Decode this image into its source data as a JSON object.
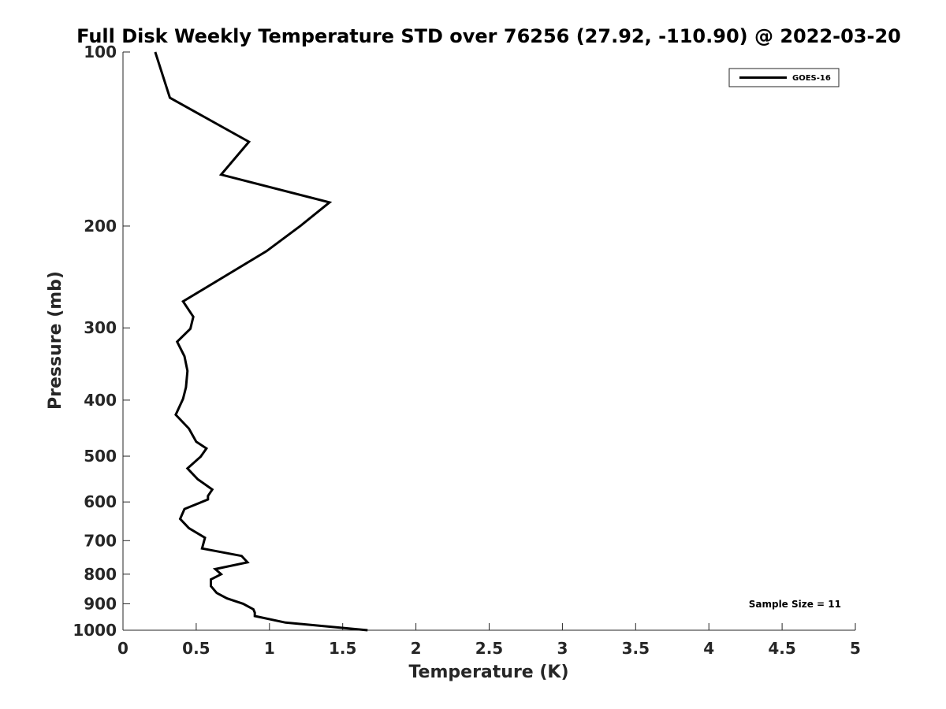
{
  "chart_data": {
    "type": "line",
    "title": "Full Disk Weekly Temperature STD over 76256 (27.92, -110.90) @ 2022-03-20",
    "xlabel": "Temperature (K)",
    "ylabel": "Pressure (mb)",
    "xlim": [
      0,
      5
    ],
    "ylim": [
      1000,
      100
    ],
    "y_scale": "log",
    "y_reversed": true,
    "x_ticks": [
      "0",
      "0.5",
      "1",
      "1.5",
      "2",
      "2.5",
      "3",
      "3.5",
      "4",
      "4.5",
      "5"
    ],
    "y_ticks": [
      "100",
      "200",
      "300",
      "400",
      "500",
      "600",
      "700",
      "800",
      "900",
      "1000"
    ],
    "grid": false,
    "legend": {
      "position": "top-right",
      "entries": [
        "GOES-16"
      ]
    },
    "annotation": "Sample Size = 11",
    "series": [
      {
        "name": "GOES-16",
        "color": "#000000",
        "points": [
          [
            0.22,
            100
          ],
          [
            0.32,
            120
          ],
          [
            0.86,
            143
          ],
          [
            0.67,
            163
          ],
          [
            1.41,
            182
          ],
          [
            1.21,
            200
          ],
          [
            0.98,
            221
          ],
          [
            0.41,
            270
          ],
          [
            0.48,
            287
          ],
          [
            0.46,
            301
          ],
          [
            0.37,
            317
          ],
          [
            0.42,
            336
          ],
          [
            0.44,
            356
          ],
          [
            0.43,
            380
          ],
          [
            0.41,
            398
          ],
          [
            0.36,
            424
          ],
          [
            0.45,
            448
          ],
          [
            0.5,
            472
          ],
          [
            0.57,
            485
          ],
          [
            0.53,
            501
          ],
          [
            0.44,
            525
          ],
          [
            0.51,
            548
          ],
          [
            0.61,
            571
          ],
          [
            0.58,
            586
          ],
          [
            0.58,
            594
          ],
          [
            0.42,
            617
          ],
          [
            0.39,
            642
          ],
          [
            0.45,
            666
          ],
          [
            0.56,
            692
          ],
          [
            0.54,
            722
          ],
          [
            0.81,
            744
          ],
          [
            0.85,
            763
          ],
          [
            0.63,
            784
          ],
          [
            0.67,
            800
          ],
          [
            0.6,
            817
          ],
          [
            0.6,
            839
          ],
          [
            0.64,
            862
          ],
          [
            0.71,
            881
          ],
          [
            0.82,
            900
          ],
          [
            0.89,
            920
          ],
          [
            0.9,
            932
          ],
          [
            0.9,
            945
          ],
          [
            1.11,
            970
          ],
          [
            1.67,
            1000
          ]
        ]
      }
    ]
  }
}
